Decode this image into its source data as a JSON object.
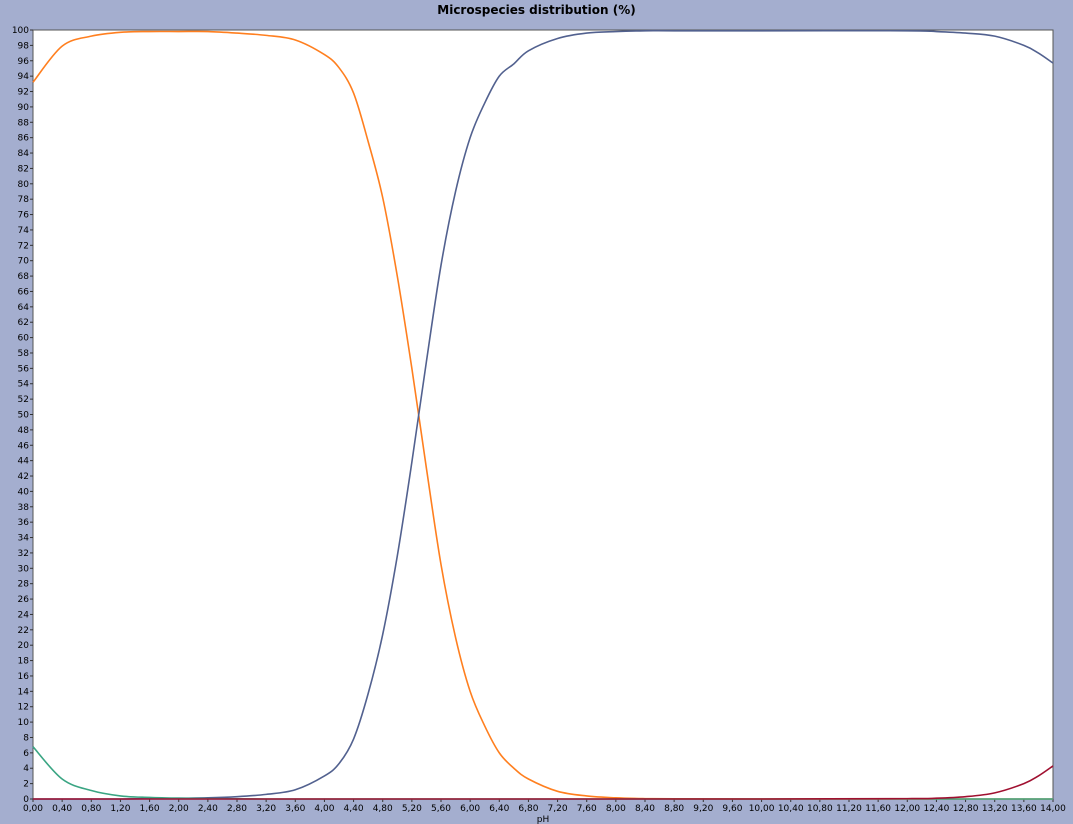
{
  "chart_data": {
    "type": "line",
    "title": "Microspecies distribution (%)",
    "xlabel": "pH",
    "ylabel": "",
    "xlim": [
      0,
      14
    ],
    "ylim": [
      0,
      100
    ],
    "grid": false,
    "legend": "none",
    "x_ticks": [
      "0,00",
      "0,40",
      "0,80",
      "1,20",
      "1,60",
      "2,00",
      "2,40",
      "2,80",
      "3,20",
      "3,60",
      "4,00",
      "4,40",
      "4,80",
      "5,20",
      "5,60",
      "6,00",
      "6,40",
      "6,80",
      "7,20",
      "7,60",
      "8,00",
      "8,40",
      "8,80",
      "9,20",
      "9,60",
      "10,00",
      "10,40",
      "10,80",
      "11,20",
      "11,60",
      "12,00",
      "12,40",
      "12,80",
      "13,20",
      "13,60",
      "14,00"
    ],
    "y_ticks": [
      "0",
      "2",
      "4",
      "6",
      "8",
      "10",
      "12",
      "14",
      "16",
      "18",
      "20",
      "22",
      "24",
      "26",
      "28",
      "30",
      "32",
      "34",
      "36",
      "38",
      "40",
      "42",
      "44",
      "46",
      "48",
      "50",
      "52",
      "54",
      "56",
      "58",
      "60",
      "62",
      "64",
      "66",
      "68",
      "70",
      "72",
      "74",
      "76",
      "78",
      "80",
      "82",
      "84",
      "86",
      "88",
      "90",
      "92",
      "94",
      "96",
      "98",
      "100"
    ],
    "x": [
      0,
      0.4,
      0.8,
      1.2,
      1.6,
      2.0,
      2.4,
      2.8,
      3.2,
      3.6,
      4.0,
      4.2,
      4.4,
      4.6,
      4.8,
      5.0,
      5.2,
      5.4,
      5.6,
      5.8,
      6.0,
      6.2,
      6.4,
      6.6,
      6.8,
      7.2,
      7.6,
      8.0,
      8.4,
      8.8,
      10.0,
      12.0,
      12.4,
      12.8,
      13.2,
      13.6,
      13.8,
      14.0
    ],
    "series": [
      {
        "color": "#ff7f1f",
        "values": [
          93.2,
          97.9,
          99.2,
          99.7,
          99.8,
          99.8,
          99.8,
          99.6,
          99.3,
          98.7,
          96.8,
          95.1,
          91.8,
          85.5,
          78.2,
          68.0,
          56.0,
          43.0,
          30.5,
          21.0,
          14.0,
          9.5,
          6.0,
          4.0,
          2.6,
          1.0,
          0.4,
          0.15,
          0.05,
          0.02,
          0.0,
          0.0,
          0.0,
          0.0,
          0.0,
          0.0,
          0.0,
          0.0
        ]
      },
      {
        "color": "#52618f",
        "values": [
          0.0,
          0.0,
          0.0,
          0.0,
          0.05,
          0.1,
          0.15,
          0.3,
          0.6,
          1.2,
          3.0,
          4.6,
          7.8,
          13.7,
          21.4,
          31.6,
          43.8,
          56.9,
          69.4,
          79.0,
          86.0,
          90.5,
          94.0,
          95.6,
          97.3,
          98.9,
          99.6,
          99.8,
          99.9,
          99.9,
          99.9,
          99.9,
          99.8,
          99.6,
          99.2,
          98.0,
          97.0,
          95.7
        ]
      },
      {
        "color": "#3aa583",
        "values": [
          6.8,
          2.6,
          1.1,
          0.4,
          0.2,
          0.1,
          0.05,
          0.02,
          0.0,
          0.0,
          0.0,
          0.0,
          0.0,
          0.0,
          0.0,
          0.0,
          0.0,
          0.0,
          0.0,
          0.0,
          0.0,
          0.0,
          0.0,
          0.0,
          0.0,
          0.0,
          0.0,
          0.0,
          0.0,
          0.0,
          0.0,
          0.0,
          0.0,
          0.0,
          0.0,
          0.0,
          0.0,
          0.0
        ]
      },
      {
        "color": "#a01030",
        "values": [
          0.0,
          0.0,
          0.0,
          0.0,
          0.0,
          0.0,
          0.0,
          0.0,
          0.0,
          0.0,
          0.0,
          0.0,
          0.0,
          0.0,
          0.0,
          0.0,
          0.0,
          0.0,
          0.0,
          0.0,
          0.0,
          0.0,
          0.0,
          0.0,
          0.0,
          0.0,
          0.0,
          0.0,
          0.0,
          0.0,
          0.0,
          0.05,
          0.1,
          0.3,
          0.8,
          2.0,
          3.0,
          4.3
        ]
      }
    ]
  }
}
